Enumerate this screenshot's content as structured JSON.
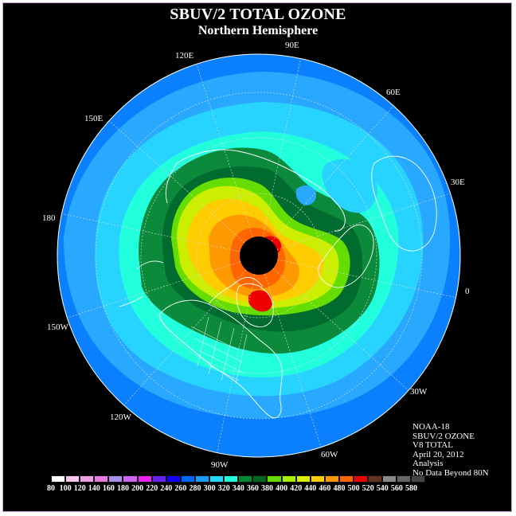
{
  "header": {
    "title": "SBUV/2 TOTAL OZONE",
    "subtitle": "Northern Hemisphere"
  },
  "longitude_labels": [
    "90E",
    "60E",
    "30E",
    "0",
    "30W",
    "60W",
    "90W",
    "120W",
    "150W",
    "180",
    "150E",
    "120E"
  ],
  "info": {
    "satellite": "NOAA-18",
    "instrument": "SBUV/2 OZONE",
    "product": "V8 TOTAL",
    "date": "April 20, 2012",
    "type": "Analysis",
    "note": "No Data Beyond 80N"
  },
  "colorbar": {
    "values": [
      "80",
      "100",
      "120",
      "140",
      "160",
      "180",
      "200",
      "220",
      "240",
      "260",
      "280",
      "300",
      "320",
      "340",
      "360",
      "380",
      "400",
      "420",
      "440",
      "460",
      "480",
      "500",
      "520",
      "540",
      "560",
      "580"
    ],
    "colors": [
      "#ffffff",
      "#f7c6ee",
      "#ef9fe6",
      "#e87ae0",
      "#a890e8",
      "#cc66ee",
      "#ee22ee",
      "#6622ee",
      "#1100ff",
      "#0066ff",
      "#1a9dff",
      "#24d7ff",
      "#22ffdd",
      "#008833",
      "#006622",
      "#66dd00",
      "#aaee00",
      "#ddee00",
      "#ffcc00",
      "#ff9900",
      "#ff6600",
      "#ee0000",
      "#663322",
      "#888888",
      "#666666",
      "#444444"
    ]
  },
  "colors": {
    "background": "#000000",
    "grid": "#dddddd",
    "coast": "#ffffff",
    "no_data": "#000000"
  }
}
